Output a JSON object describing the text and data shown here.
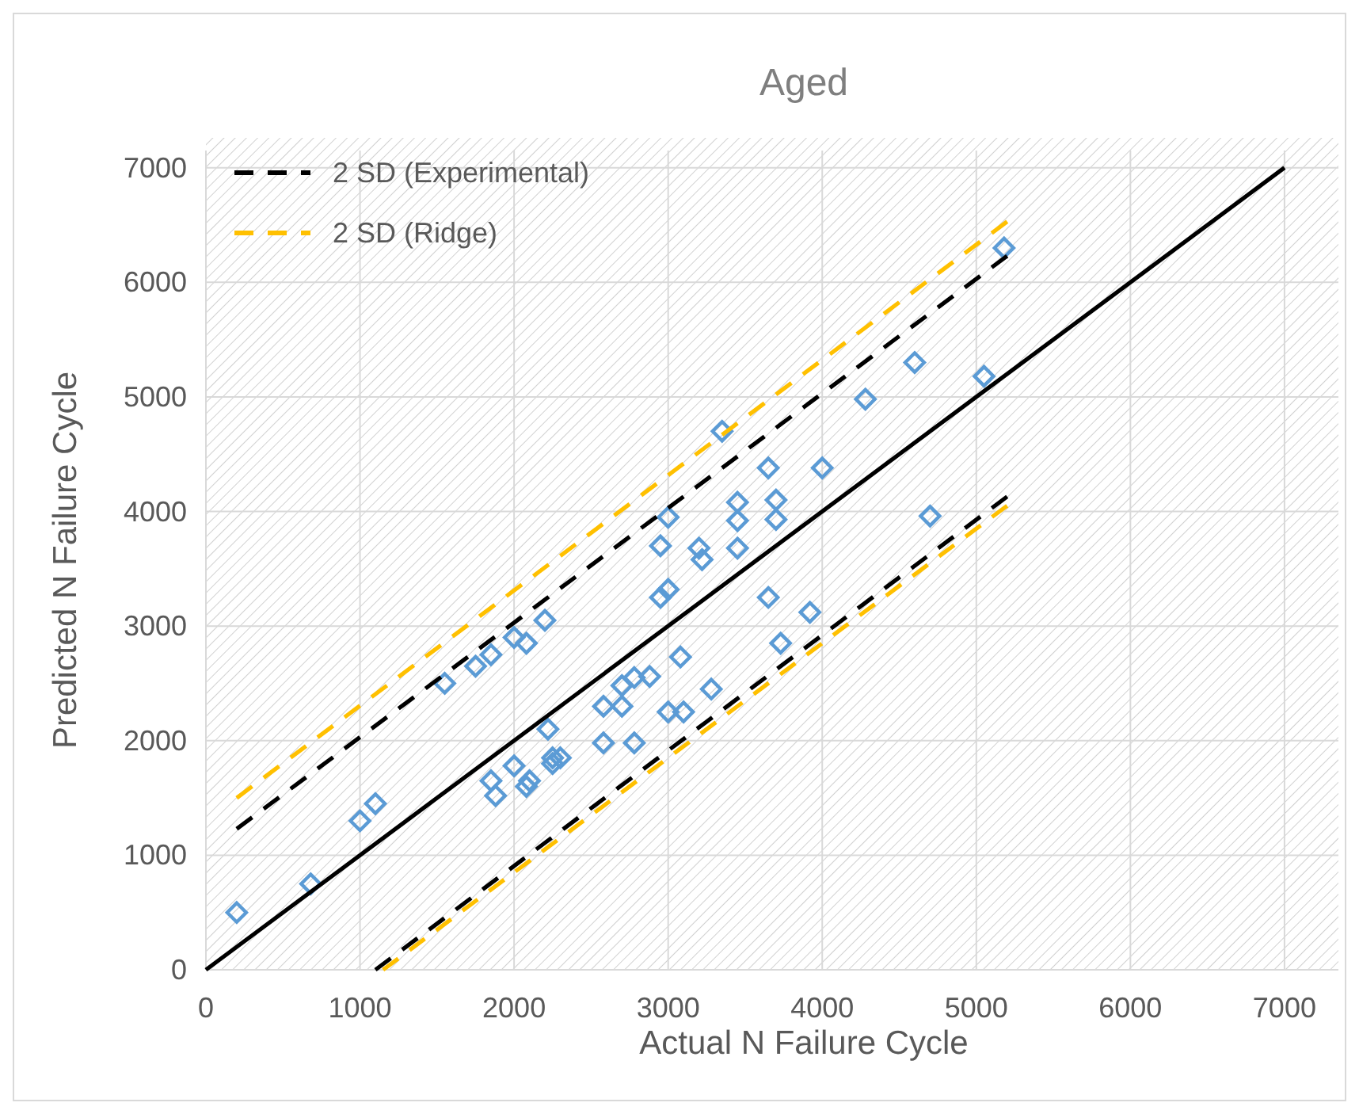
{
  "chart_data": {
    "type": "scatter",
    "title": "Aged",
    "xlabel": "Actual N Failure Cycle",
    "ylabel": "Predicted N Failure Cycle",
    "xlim": [
      0,
      7350
    ],
    "ylim": [
      0,
      7150
    ],
    "xticks": [
      0,
      1000,
      2000,
      3000,
      4000,
      5000,
      6000,
      7000
    ],
    "yticks": [
      0,
      1000,
      2000,
      3000,
      4000,
      5000,
      6000,
      7000
    ],
    "grid": true,
    "legend": "top left",
    "series": [
      {
        "color": "#5b9bd5",
        "marker": "diamond",
        "x": [
          200,
          680,
          1000,
          1100,
          1550,
          1750,
          1850,
          1850,
          1880,
          2000,
          2000,
          2080,
          2080,
          2100,
          2200,
          2220,
          2250,
          2250,
          2300,
          2580,
          2580,
          2700,
          2700,
          2780,
          2780,
          2880,
          2950,
          2950,
          3000,
          3000,
          3000,
          3080,
          3100,
          3200,
          3220,
          3280,
          3350,
          3450,
          3450,
          3450,
          3650,
          3650,
          3700,
          3700,
          3730,
          3920,
          4000,
          4280,
          4600,
          4700,
          5050,
          5180
        ],
        "values": [
          500,
          750,
          1300,
          1450,
          2500,
          2650,
          2750,
          1650,
          1520,
          2900,
          1780,
          2850,
          1600,
          1650,
          3050,
          2100,
          1800,
          1850,
          1850,
          2300,
          1980,
          2300,
          2480,
          2550,
          1980,
          2560,
          3700,
          3250,
          3320,
          3950,
          2250,
          2730,
          2250,
          3680,
          3580,
          2450,
          4700,
          4080,
          3920,
          3680,
          4380,
          3250,
          4100,
          3930,
          2850,
          3120,
          4380,
          4980,
          5300,
          3960,
          5180,
          6300
        ]
      },
      {
        "type": "line",
        "color": "#000000",
        "line_style": "solid",
        "x": [
          0,
          7000
        ],
        "values": [
          0,
          7000
        ]
      },
      {
        "type": "line",
        "name": "2 SD (Experimental)",
        "color": "#000000",
        "line_style": "dashed",
        "x": [
          200,
          5200
        ],
        "values": [
          1230,
          6230
        ]
      },
      {
        "type": "line",
        "color": "#000000",
        "line_style": "dashed",
        "x": [
          1100,
          5200
        ],
        "values": [
          0,
          4130
        ]
      },
      {
        "type": "line",
        "name": "2 SD (Ridge)",
        "color": "#ffc000",
        "line_style": "dashed",
        "x": [
          200,
          5200
        ],
        "values": [
          1500,
          6530
        ]
      },
      {
        "type": "line",
        "color": "#ffc000",
        "line_style": "dashed",
        "x": [
          1150,
          5200
        ],
        "values": [
          0,
          4050
        ]
      }
    ]
  }
}
